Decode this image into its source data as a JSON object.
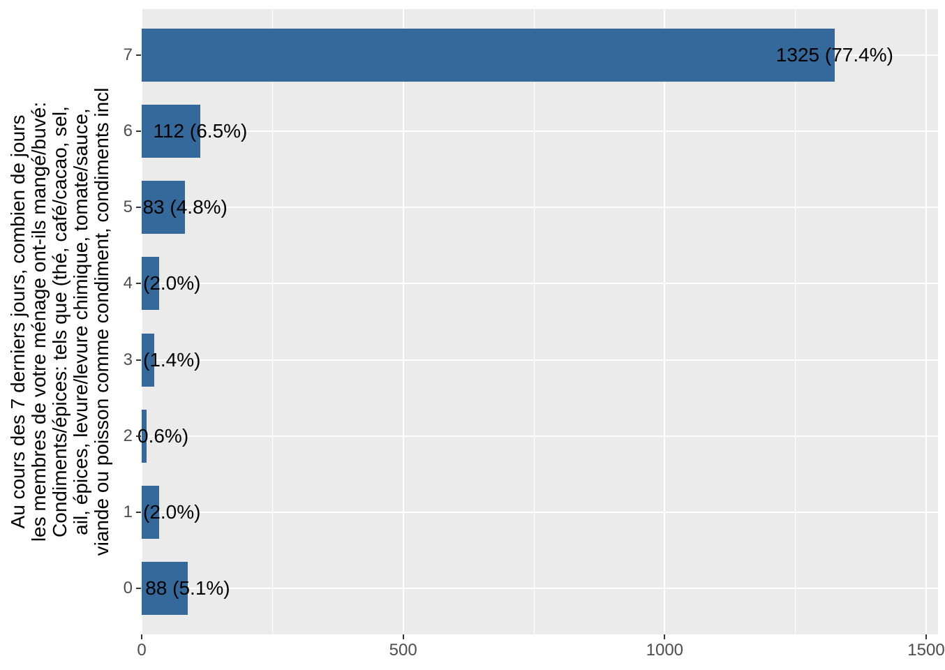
{
  "chart_data": {
    "type": "bar",
    "orientation": "horizontal",
    "title": "",
    "xlabel": "",
    "ylabel_lines": [
      "Au cours des 7 derniers jours, combien de jours",
      "les membres de votre ménage ont-ils mangé/buvé:",
      "Condiments/épices: tels que (thé, café/cacao, sel,",
      "ail, épices, levure/levure chimique, tomate/sauce,",
      "viande ou poisson comme condiment, condiments incl"
    ],
    "categories": [
      "7",
      "6",
      "5",
      "4",
      "3",
      "2",
      "1",
      "0"
    ],
    "values": [
      1325,
      112,
      83,
      34,
      24,
      10,
      34,
      88
    ],
    "bar_labels": [
      "1325 (77.4%)",
      "112 (6.5%)",
      "83 (4.8%)",
      "(2.0%)",
      "(1.4%)",
      "0.6%)",
      "(2.0%)",
      "88 (5.1%)"
    ],
    "label_anchor": [
      "bar-end",
      "bar-end",
      "bar-end",
      "panel-left",
      "panel-left",
      "panel-left-partial",
      "panel-left",
      "bar-end"
    ],
    "x_ticks": [
      "0",
      "500",
      "1000",
      "1500"
    ],
    "x_tick_values": [
      0,
      500,
      1000,
      1500
    ],
    "x_minor_tick_values": [
      250,
      750,
      1250
    ],
    "xlim": [
      0,
      1523
    ],
    "grid": "white major+minor vertical, white major horizontal per category",
    "legend": "none",
    "colors": {
      "bar": "#36699B",
      "panel_bg": "#EBEBEB",
      "grid": "#FFFFFF",
      "tick_text": "#4D4D4D",
      "bar_label_text": "#000000",
      "axis_title_text": "#000000",
      "tick_mark": "#333333",
      "background": "#FFFFFF"
    }
  }
}
